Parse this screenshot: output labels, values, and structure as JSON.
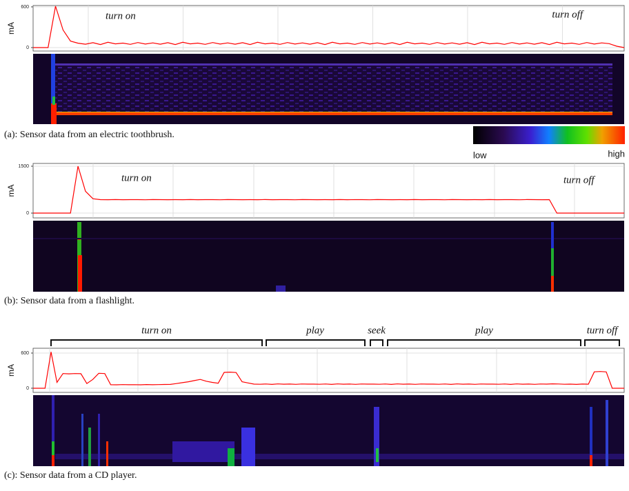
{
  "chart_data": [
    {
      "type": "line",
      "y_label": "mA",
      "caption": "(a): Sensor data from an electric toothbrush.",
      "color": "#ff0000",
      "ylim": [
        -51,
        620
      ],
      "yticks": [
        0,
        600
      ],
      "grid": true,
      "annotations": [
        "turn on",
        "turn off"
      ],
      "colorbar_labels": [
        "low",
        "high"
      ],
      "values": [
        0,
        0,
        0,
        610,
        260,
        95,
        65,
        50,
        72,
        45,
        78,
        55,
        66,
        48,
        74,
        52,
        69,
        50,
        72,
        45,
        78,
        55,
        66,
        48,
        74,
        52,
        69,
        50,
        72,
        45,
        78,
        55,
        66,
        48,
        74,
        52,
        69,
        50,
        72,
        45,
        78,
        55,
        66,
        48,
        74,
        52,
        69,
        50,
        72,
        45,
        78,
        55,
        66,
        48,
        74,
        52,
        69,
        50,
        72,
        45,
        78,
        55,
        66,
        48,
        74,
        52,
        69,
        50,
        72,
        45,
        78,
        55,
        66,
        48,
        74,
        52,
        69,
        58,
        20,
        0
      ]
    },
    {
      "type": "line",
      "y_label": "mA",
      "caption": "(b): Sensor data from a flashlight.",
      "color": "#ff0000",
      "ylim": [
        -154,
        1588
      ],
      "yticks": [
        0,
        1500
      ],
      "grid": true,
      "annotations": [
        "turn on",
        "turn off"
      ],
      "values": [
        0,
        0,
        0,
        0,
        0,
        0,
        1500,
        700,
        460,
        430,
        428,
        432,
        429,
        431,
        430,
        427,
        433,
        430,
        429,
        430,
        428,
        432,
        429,
        431,
        430,
        427,
        433,
        430,
        429,
        430,
        428,
        432,
        429,
        431,
        430,
        427,
        433,
        430,
        429,
        430,
        428,
        432,
        429,
        431,
        430,
        427,
        433,
        430,
        429,
        430,
        428,
        432,
        429,
        431,
        430,
        427,
        433,
        430,
        429,
        430,
        428,
        432,
        429,
        431,
        430,
        427,
        433,
        430,
        429,
        430,
        0,
        0,
        0,
        0,
        0,
        0,
        0,
        0,
        0,
        0
      ]
    },
    {
      "type": "line",
      "y_label": "mA",
      "caption": "(c): Sensor data from a CD player.",
      "color": "#ff0000",
      "ylim": [
        -71,
        682
      ],
      "yticks": [
        0,
        600
      ],
      "grid": true,
      "annotations": [
        "turn on",
        "play",
        "seek",
        "play",
        "turn off"
      ],
      "values": [
        0,
        0,
        0,
        620,
        100,
        250,
        245,
        250,
        248,
        80,
        150,
        255,
        250,
        60,
        58,
        62,
        60,
        61,
        59,
        63,
        60,
        62,
        64,
        66,
        80,
        95,
        110,
        130,
        150,
        120,
        100,
        85,
        270,
        275,
        268,
        110,
        90,
        70,
        68,
        72,
        66,
        74,
        69,
        71,
        67,
        73,
        70,
        70,
        68,
        72,
        66,
        74,
        69,
        71,
        67,
        73,
        70,
        70,
        68,
        72,
        66,
        74,
        69,
        71,
        67,
        73,
        70,
        70,
        68,
        72,
        66,
        74,
        69,
        71,
        67,
        73,
        70,
        70,
        68,
        72,
        66,
        74,
        69,
        71,
        67,
        73,
        70,
        75,
        72,
        68,
        70,
        66,
        71,
        69,
        280,
        285,
        278,
        0,
        0,
        0
      ]
    }
  ]
}
